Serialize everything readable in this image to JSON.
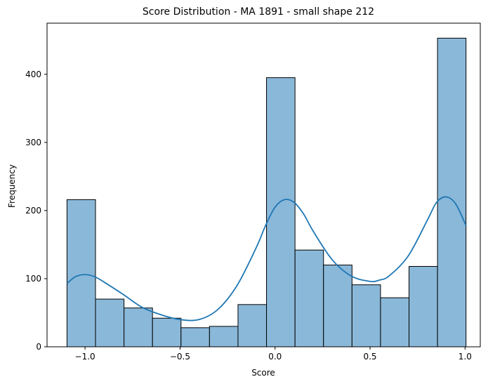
{
  "chart_data": {
    "type": "bar",
    "title": "Score Distribution - MA 1891 - small shape 212",
    "xlabel": "Score",
    "ylabel": "Frequency",
    "xlim": [
      -1.2,
      1.08
    ],
    "ylim": [
      0,
      475
    ],
    "x_ticks": [
      -1.0,
      -0.5,
      0.0,
      0.5,
      1.0
    ],
    "x_tick_labels": [
      "−1.0",
      "−0.5",
      "0.0",
      "0.5",
      "1.0"
    ],
    "y_ticks": [
      0,
      100,
      200,
      300,
      400
    ],
    "y_tick_labels": [
      "0",
      "100",
      "200",
      "300",
      "400"
    ],
    "bins": [
      {
        "x0": -1.095,
        "x1": -0.945,
        "count": 216
      },
      {
        "x0": -0.945,
        "x1": -0.795,
        "count": 70
      },
      {
        "x0": -0.795,
        "x1": -0.645,
        "count": 57
      },
      {
        "x0": -0.645,
        "x1": -0.495,
        "count": 42
      },
      {
        "x0": -0.495,
        "x1": -0.345,
        "count": 28
      },
      {
        "x0": -0.345,
        "x1": -0.195,
        "count": 30
      },
      {
        "x0": -0.195,
        "x1": -0.045,
        "count": 62
      },
      {
        "x0": -0.045,
        "x1": 0.105,
        "count": 395
      },
      {
        "x0": 0.105,
        "x1": 0.255,
        "count": 142
      },
      {
        "x0": 0.255,
        "x1": 0.405,
        "count": 120
      },
      {
        "x0": 0.405,
        "x1": 0.555,
        "count": 91
      },
      {
        "x0": 0.555,
        "x1": 0.705,
        "count": 72
      },
      {
        "x0": 0.705,
        "x1": 0.855,
        "count": 118
      },
      {
        "x0": 0.855,
        "x1": 1.005,
        "count": 453
      }
    ],
    "kde": {
      "x": [
        -1.095,
        -1.05,
        -1.0,
        -0.95,
        -0.9,
        -0.8,
        -0.7,
        -0.6,
        -0.5,
        -0.4,
        -0.3,
        -0.2,
        -0.1,
        -0.05,
        0.0,
        0.05,
        0.1,
        0.15,
        0.2,
        0.3,
        0.4,
        0.5,
        0.55,
        0.6,
        0.7,
        0.8,
        0.85,
        0.9,
        0.95,
        1.005
      ],
      "y": [
        93,
        103,
        106,
        103,
        95,
        77,
        58,
        47,
        40,
        40,
        55,
        90,
        145,
        178,
        205,
        216,
        212,
        195,
        170,
        128,
        104,
        96,
        98,
        104,
        133,
        185,
        212,
        220,
        210,
        178
      ]
    },
    "bar_fill": "#8ab8d9",
    "bar_edge": "#000000",
    "line_color": "#1f77b4",
    "grid": false
  }
}
